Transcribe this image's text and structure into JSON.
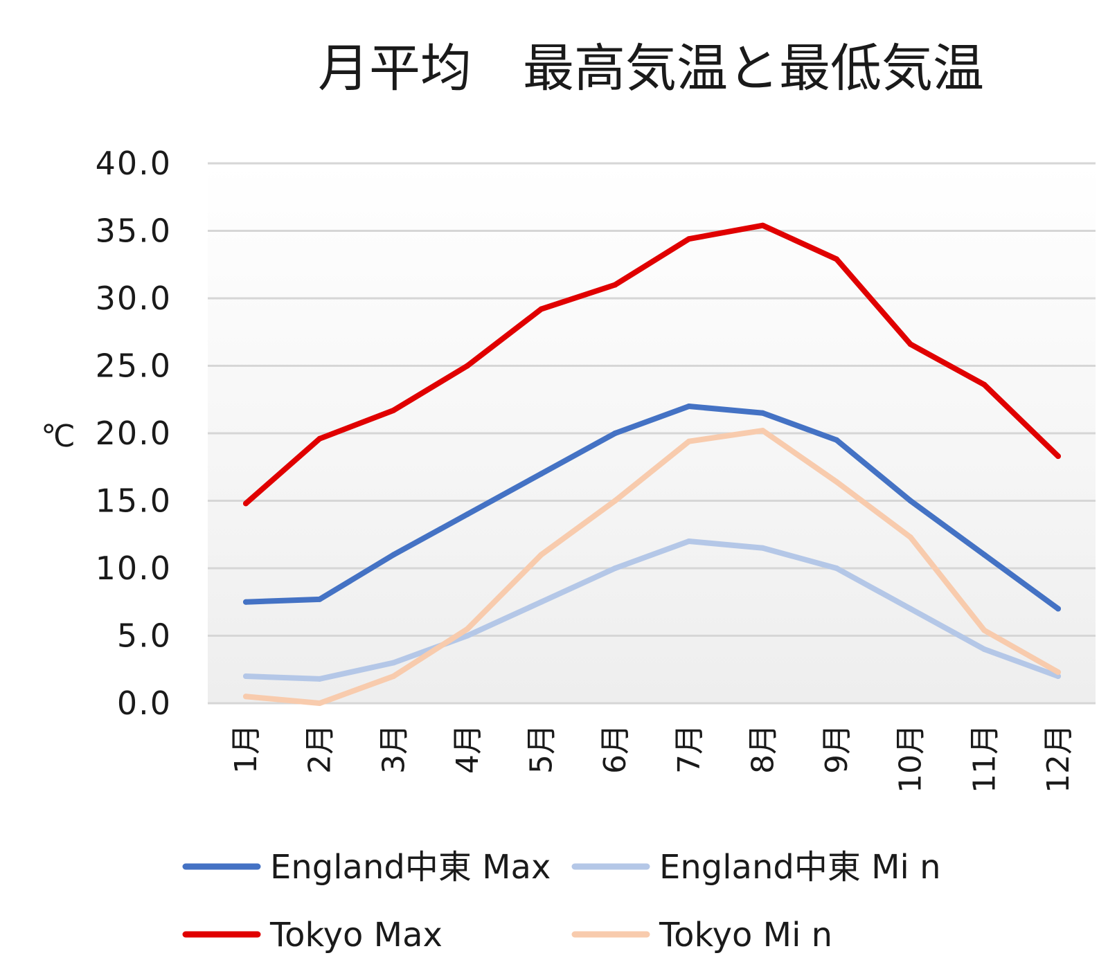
{
  "chart_data": {
    "type": "line",
    "title": "月平均　最高気温と最低気温",
    "xlabel": "",
    "ylabel": "℃",
    "ylim": [
      0,
      40
    ],
    "y_ticks": [
      "0.0",
      "5.0",
      "10.0",
      "15.0",
      "20.0",
      "25.0",
      "30.0",
      "35.0",
      "40.0"
    ],
    "categories": [
      "1月",
      "2月",
      "3月",
      "4月",
      "5月",
      "6月",
      "7月",
      "8月",
      "9月",
      "10月",
      "11月",
      "12月"
    ],
    "grid": true,
    "legend_position": "bottom",
    "series": [
      {
        "name": "England中東 Max",
        "color": "#4472c4",
        "values": [
          7.5,
          7.7,
          11.0,
          14.0,
          17.0,
          20.0,
          22.0,
          21.5,
          19.5,
          15.0,
          11.0,
          7.0
        ]
      },
      {
        "name": "England中東 Mi n",
        "color": "#b4c7e7",
        "values": [
          2.0,
          1.8,
          3.0,
          5.0,
          7.5,
          10.0,
          12.0,
          11.5,
          10.0,
          7.0,
          4.0,
          2.0
        ]
      },
      {
        "name": "Tokyo Max",
        "color": "#e00000",
        "values": [
          14.8,
          19.6,
          21.7,
          25.0,
          29.2,
          31.0,
          34.4,
          35.4,
          32.9,
          26.6,
          23.6,
          18.3
        ]
      },
      {
        "name": "Tokyo Mi n",
        "color": "#f8cbad",
        "values": [
          0.5,
          0.0,
          2.0,
          5.5,
          11.0,
          15.0,
          19.4,
          20.2,
          16.4,
          12.3,
          5.4,
          2.3
        ]
      }
    ]
  }
}
